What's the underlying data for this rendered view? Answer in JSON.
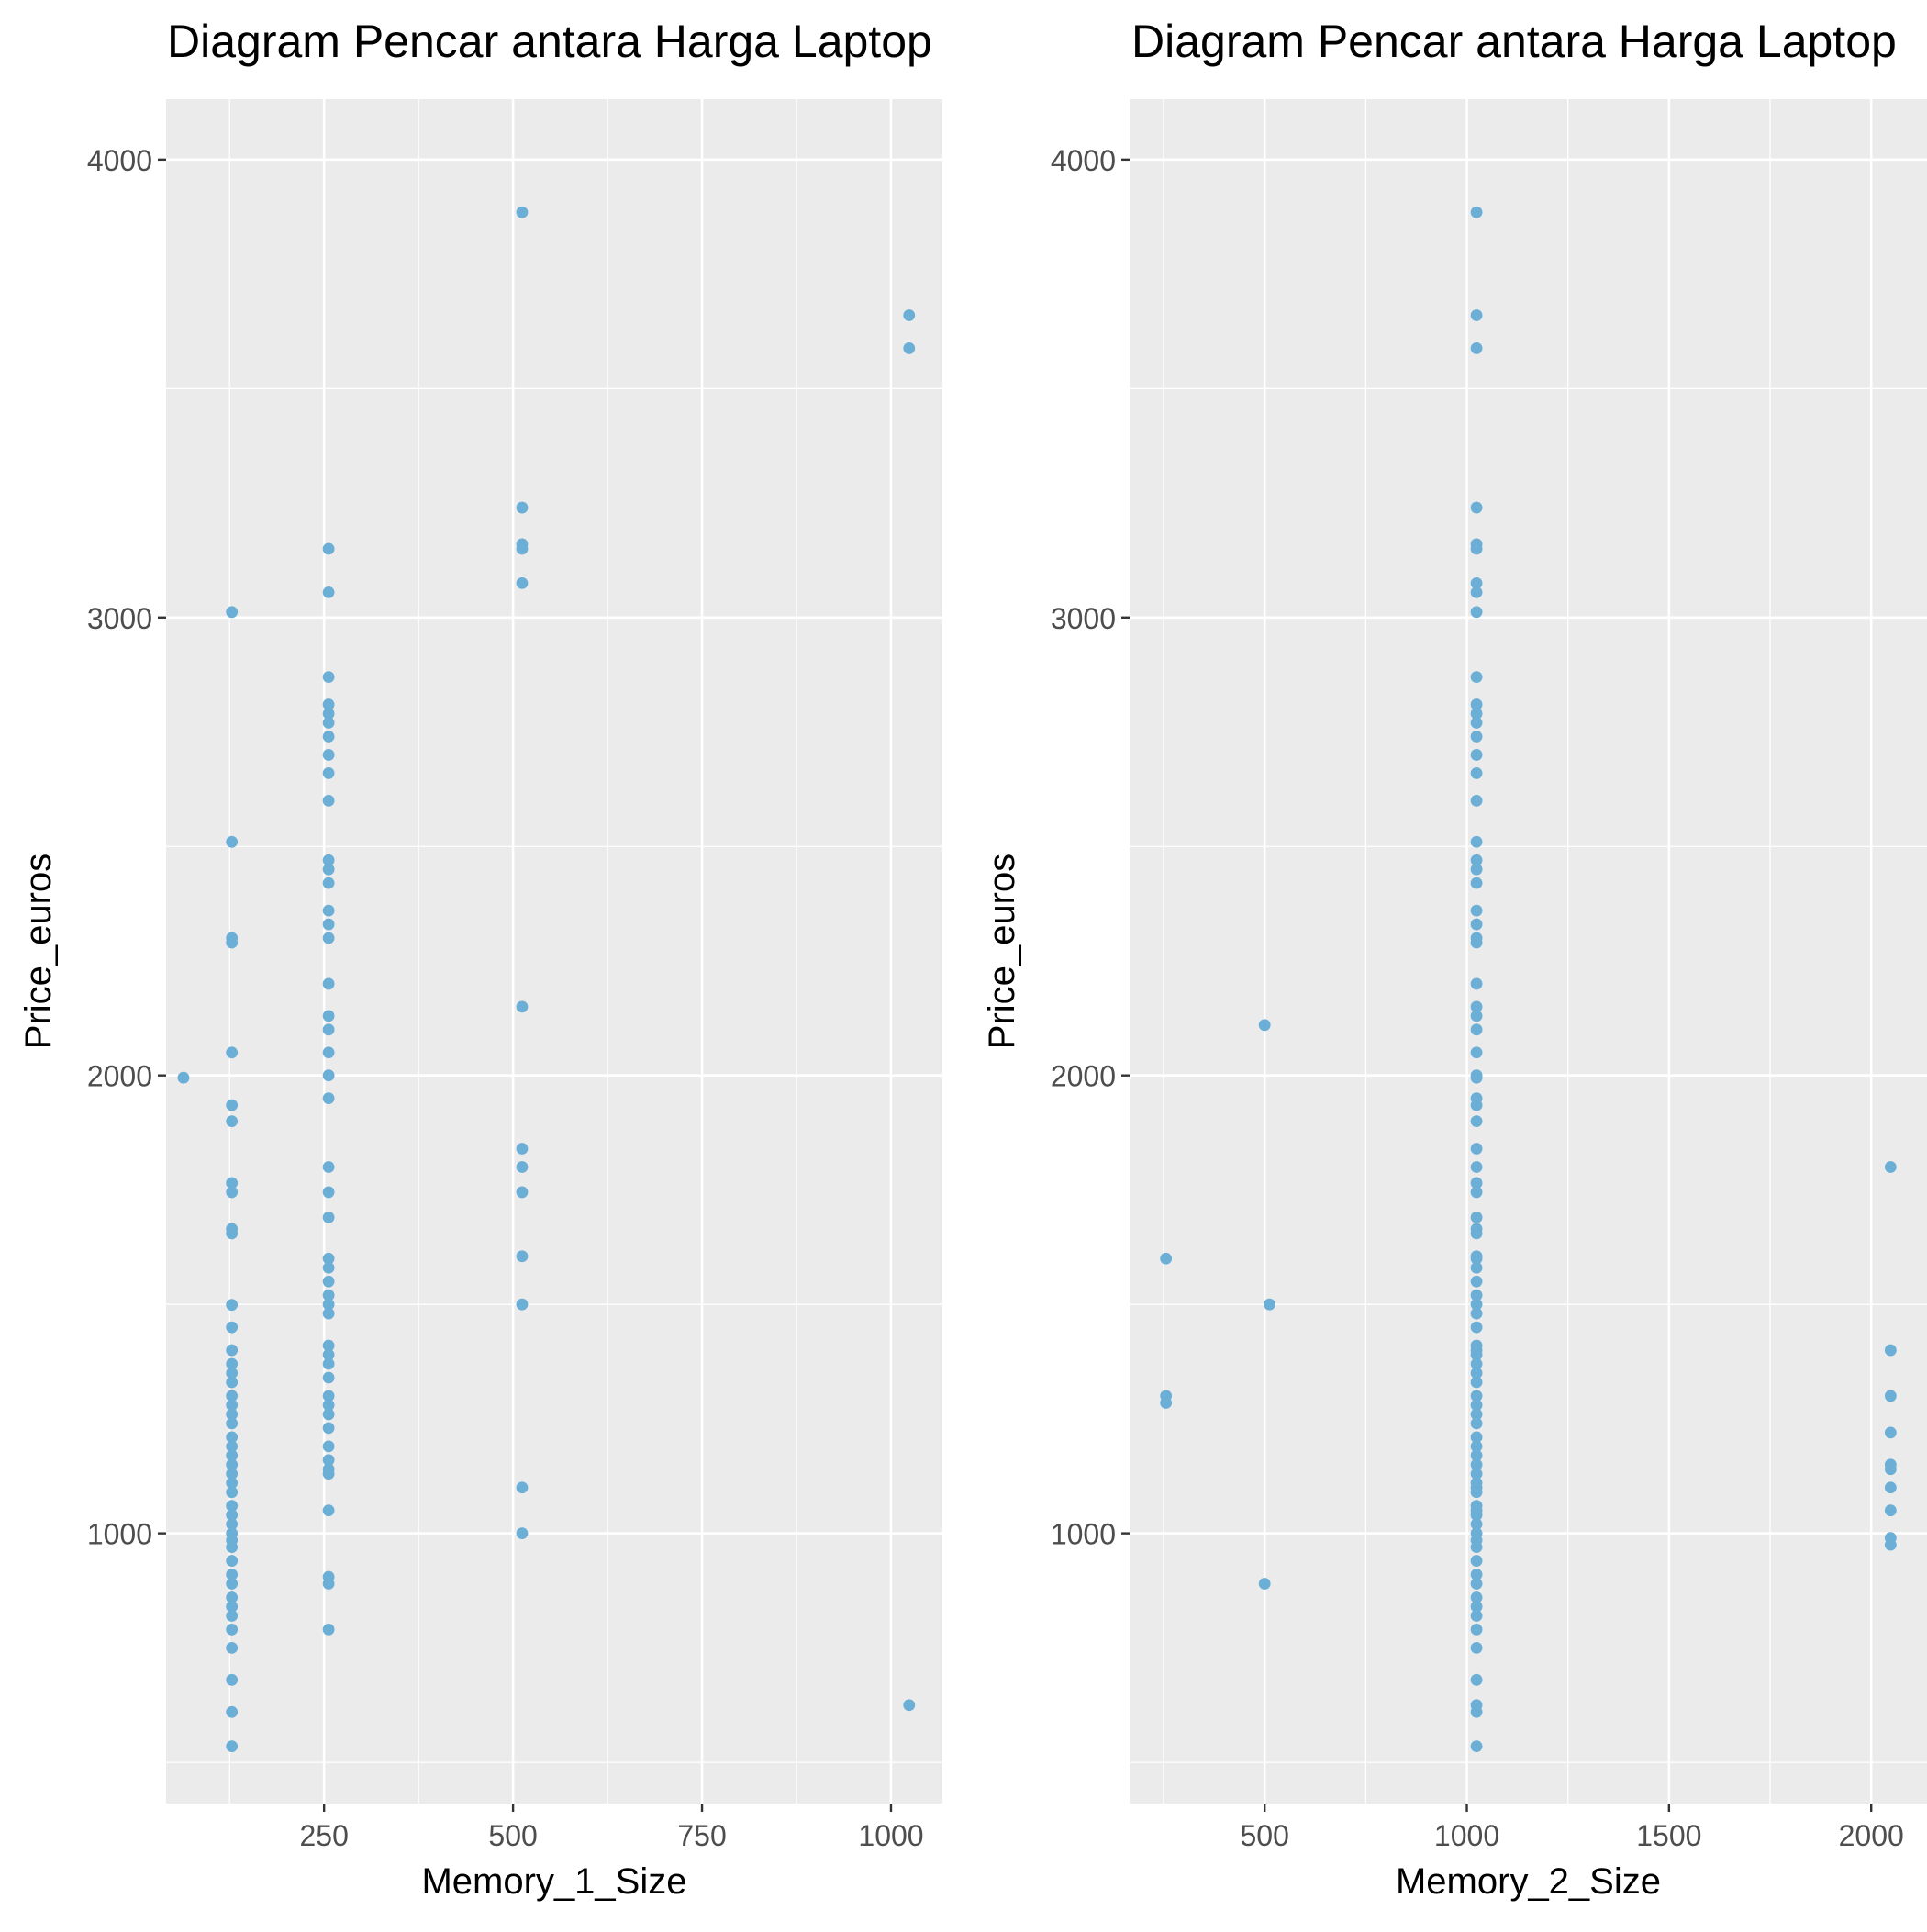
{
  "chart_data": [
    {
      "type": "scatter",
      "title": "Diagram Pencar antara Harga Laptop",
      "xlabel": "Memory_1_Size",
      "ylabel": "Price_euros",
      "xlim": [
        41,
        1068
      ],
      "ylim": [
        410,
        4132
      ],
      "x_ticks": [
        250,
        500,
        750,
        1000
      ],
      "y_ticks": [
        1000,
        2000,
        3000,
        4000
      ],
      "grid": true,
      "point_color": "#6BAED6",
      "panel_color": "#EBEBEB",
      "series": [
        {
          "points": [
            [
              64,
              1995
            ],
            [
              128,
              3012
            ],
            [
              128,
              2510
            ],
            [
              128,
              2300
            ],
            [
              128,
              2290
            ],
            [
              128,
              2050
            ],
            [
              128,
              1935
            ],
            [
              128,
              1900
            ],
            [
              128,
              1765
            ],
            [
              128,
              1745
            ],
            [
              128,
              1665
            ],
            [
              128,
              1655
            ],
            [
              128,
              1499
            ],
            [
              128,
              1450
            ],
            [
              128,
              1400
            ],
            [
              128,
              1370
            ],
            [
              128,
              1350
            ],
            [
              128,
              1330
            ],
            [
              128,
              1300
            ],
            [
              128,
              1280
            ],
            [
              128,
              1260
            ],
            [
              128,
              1240
            ],
            [
              128,
              1210
            ],
            [
              128,
              1190
            ],
            [
              128,
              1170
            ],
            [
              128,
              1150
            ],
            [
              128,
              1130
            ],
            [
              128,
              1110
            ],
            [
              128,
              1090
            ],
            [
              128,
              1060
            ],
            [
              128,
              1040
            ],
            [
              128,
              1020
            ],
            [
              128,
              1000
            ],
            [
              128,
              985
            ],
            [
              128,
              970
            ],
            [
              128,
              940
            ],
            [
              128,
              910
            ],
            [
              128,
              890
            ],
            [
              128,
              860
            ],
            [
              128,
              840
            ],
            [
              128,
              820
            ],
            [
              128,
              790
            ],
            [
              128,
              750
            ],
            [
              128,
              680
            ],
            [
              128,
              610
            ],
            [
              128,
              535
            ],
            [
              256,
              3150
            ],
            [
              256,
              3055
            ],
            [
              256,
              2870
            ],
            [
              256,
              2810
            ],
            [
              256,
              2790
            ],
            [
              256,
              2770
            ],
            [
              256,
              2740
            ],
            [
              256,
              2700
            ],
            [
              256,
              2660
            ],
            [
              256,
              2600
            ],
            [
              256,
              2470
            ],
            [
              256,
              2450
            ],
            [
              256,
              2420
            ],
            [
              256,
              2360
            ],
            [
              256,
              2330
            ],
            [
              256,
              2300
            ],
            [
              256,
              2200
            ],
            [
              256,
              2130
            ],
            [
              256,
              2100
            ],
            [
              256,
              2050
            ],
            [
              256,
              2000
            ],
            [
              256,
              1950
            ],
            [
              256,
              1800
            ],
            [
              256,
              1745
            ],
            [
              256,
              1690
            ],
            [
              256,
              1600
            ],
            [
              256,
              1580
            ],
            [
              256,
              1550
            ],
            [
              256,
              1520
            ],
            [
              256,
              1500
            ],
            [
              256,
              1480
            ],
            [
              256,
              1410
            ],
            [
              256,
              1390
            ],
            [
              256,
              1370
            ],
            [
              256,
              1340
            ],
            [
              256,
              1300
            ],
            [
              256,
              1280
            ],
            [
              256,
              1260
            ],
            [
              256,
              1230
            ],
            [
              256,
              1190
            ],
            [
              256,
              1160
            ],
            [
              256,
              1140
            ],
            [
              256,
              1130
            ],
            [
              256,
              1050
            ],
            [
              256,
              905
            ],
            [
              256,
              890
            ],
            [
              256,
              790
            ],
            [
              512,
              3885
            ],
            [
              512,
              3240
            ],
            [
              512,
              3160
            ],
            [
              512,
              3150
            ],
            [
              512,
              3075
            ],
            [
              512,
              2150
            ],
            [
              512,
              1840
            ],
            [
              512,
              1800
            ],
            [
              512,
              1745
            ],
            [
              512,
              1605
            ],
            [
              512,
              1500
            ],
            [
              512,
              1100
            ],
            [
              512,
              1000
            ],
            [
              1024,
              3660
            ],
            [
              1024,
              3588
            ],
            [
              1024,
              625
            ]
          ]
        }
      ]
    },
    {
      "type": "scatter",
      "title": "Diagram Pencar antara Harga Laptop",
      "xlabel": "Memory_2_Size",
      "ylabel": "Price_euros",
      "xlim": [
        166,
        2138
      ],
      "ylim": [
        410,
        4132
      ],
      "x_ticks": [
        500,
        1000,
        1500,
        2000
      ],
      "y_ticks": [
        1000,
        2000,
        3000,
        4000
      ],
      "grid": true,
      "point_color": "#6BAED6",
      "panel_color": "#EBEBEB",
      "series": [
        {
          "points": [
            [
              256,
              1600
            ],
            [
              256,
              1300
            ],
            [
              256,
              1285
            ],
            [
              500,
              2110
            ],
            [
              500,
              890
            ],
            [
              512,
              1500
            ],
            [
              1024,
              3885
            ],
            [
              1024,
              3660
            ],
            [
              1024,
              3588
            ],
            [
              1024,
              3240
            ],
            [
              1024,
              3160
            ],
            [
              1024,
              3150
            ],
            [
              1024,
              3075
            ],
            [
              1024,
              3055
            ],
            [
              1024,
              3012
            ],
            [
              1024,
              2870
            ],
            [
              1024,
              2810
            ],
            [
              1024,
              2790
            ],
            [
              1024,
              2770
            ],
            [
              1024,
              2740
            ],
            [
              1024,
              2700
            ],
            [
              1024,
              2660
            ],
            [
              1024,
              2600
            ],
            [
              1024,
              2510
            ],
            [
              1024,
              2470
            ],
            [
              1024,
              2450
            ],
            [
              1024,
              2420
            ],
            [
              1024,
              2360
            ],
            [
              1024,
              2330
            ],
            [
              1024,
              2300
            ],
            [
              1024,
              2290
            ],
            [
              1024,
              2200
            ],
            [
              1024,
              2150
            ],
            [
              1024,
              2130
            ],
            [
              1024,
              2100
            ],
            [
              1024,
              2050
            ],
            [
              1024,
              2000
            ],
            [
              1024,
              1995
            ],
            [
              1024,
              1950
            ],
            [
              1024,
              1935
            ],
            [
              1024,
              1900
            ],
            [
              1024,
              1840
            ],
            [
              1024,
              1800
            ],
            [
              1024,
              1765
            ],
            [
              1024,
              1745
            ],
            [
              1024,
              1690
            ],
            [
              1024,
              1665
            ],
            [
              1024,
              1655
            ],
            [
              1024,
              1605
            ],
            [
              1024,
              1600
            ],
            [
              1024,
              1580
            ],
            [
              1024,
              1550
            ],
            [
              1024,
              1520
            ],
            [
              1024,
              1500
            ],
            [
              1024,
              1480
            ],
            [
              1024,
              1450
            ],
            [
              1024,
              1410
            ],
            [
              1024,
              1400
            ],
            [
              1024,
              1390
            ],
            [
              1024,
              1370
            ],
            [
              1024,
              1350
            ],
            [
              1024,
              1330
            ],
            [
              1024,
              1300
            ],
            [
              1024,
              1280
            ],
            [
              1024,
              1260
            ],
            [
              1024,
              1240
            ],
            [
              1024,
              1210
            ],
            [
              1024,
              1190
            ],
            [
              1024,
              1170
            ],
            [
              1024,
              1150
            ],
            [
              1024,
              1130
            ],
            [
              1024,
              1110
            ],
            [
              1024,
              1100
            ],
            [
              1024,
              1090
            ],
            [
              1024,
              1060
            ],
            [
              1024,
              1050
            ],
            [
              1024,
              1040
            ],
            [
              1024,
              1020
            ],
            [
              1024,
              1000
            ],
            [
              1024,
              985
            ],
            [
              1024,
              970
            ],
            [
              1024,
              940
            ],
            [
              1024,
              910
            ],
            [
              1024,
              890
            ],
            [
              1024,
              860
            ],
            [
              1024,
              840
            ],
            [
              1024,
              820
            ],
            [
              1024,
              790
            ],
            [
              1024,
              750
            ],
            [
              1024,
              680
            ],
            [
              1024,
              625
            ],
            [
              1024,
              610
            ],
            [
              1024,
              535
            ],
            [
              2048,
              1800
            ],
            [
              2048,
              1400
            ],
            [
              2048,
              1300
            ],
            [
              2048,
              1220
            ],
            [
              2048,
              1150
            ],
            [
              2048,
              1140
            ],
            [
              2048,
              1100
            ],
            [
              2048,
              1050
            ],
            [
              2048,
              990
            ],
            [
              2048,
              975
            ]
          ]
        }
      ]
    }
  ]
}
